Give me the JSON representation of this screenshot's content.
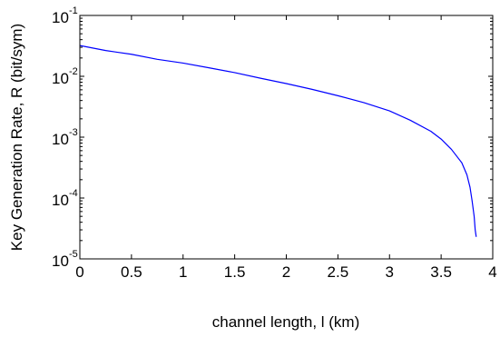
{
  "chart_data": {
    "type": "line",
    "title": "",
    "xlabel": "channel length, l (km)",
    "ylabel": "Key Generation Rate, R (bit/sym)",
    "xlim": [
      0,
      4
    ],
    "ylim": [
      1e-05,
      0.1
    ],
    "yscale": "log",
    "grid": false,
    "xticks": [
      "0",
      "0.5",
      "1",
      "1.5",
      "2",
      "2.5",
      "3",
      "3.5",
      "4"
    ],
    "yticks": [
      {
        "base": "10",
        "exp": "-1"
      },
      {
        "base": "10",
        "exp": "-2"
      },
      {
        "base": "10",
        "exp": "-3"
      },
      {
        "base": "10",
        "exp": "-4"
      },
      {
        "base": "10",
        "exp": "-5"
      }
    ],
    "series": [
      {
        "color": "#0000ff",
        "x": [
          0,
          0.25,
          0.5,
          0.75,
          1.0,
          1.25,
          1.5,
          1.75,
          2.0,
          2.25,
          2.5,
          2.75,
          3.0,
          3.2,
          3.4,
          3.5,
          3.6,
          3.7,
          3.75,
          3.78,
          3.8,
          3.82,
          3.83,
          3.84
        ],
        "y": [
          0.032,
          0.0265,
          0.023,
          0.019,
          0.0165,
          0.0138,
          0.0115,
          0.0093,
          0.0076,
          0.0061,
          0.0048,
          0.0037,
          0.0027,
          0.0019,
          0.00125,
          0.00093,
          0.00063,
          0.00038,
          0.00024,
          0.00015,
          9e-05,
          5e-05,
          3e-05,
          2.3e-05
        ]
      }
    ]
  }
}
